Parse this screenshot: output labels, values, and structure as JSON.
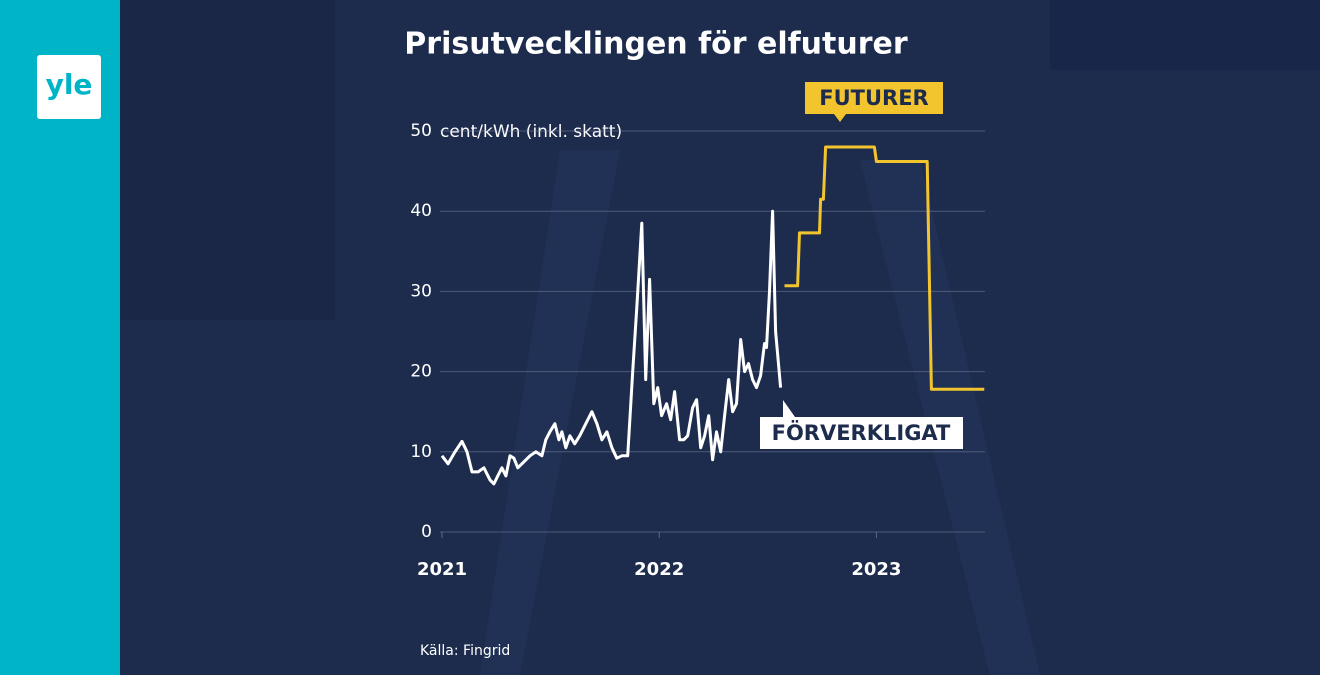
{
  "logo": "yle",
  "chart_data": {
    "type": "line",
    "title": "Prisutvecklingen för elfuturer",
    "y_label": "cent/kWh (inkl. skatt)",
    "source": "Källa: Fingrid",
    "xlim": [
      2021,
      2023.5
    ],
    "xticks": [
      2021,
      2022,
      2023
    ],
    "ylim": [
      0,
      50
    ],
    "yticks": [
      0,
      10,
      20,
      30,
      40,
      50
    ],
    "grid": true,
    "series": [
      {
        "name": "FÖRVERKLIGAT",
        "color": "#ffffff",
        "x": [
          2021.0,
          2021.028,
          2021.06,
          2021.092,
          2021.115,
          2021.138,
          2021.166,
          2021.193,
          2021.221,
          2021.239,
          2021.257,
          2021.276,
          2021.294,
          2021.313,
          2021.331,
          2021.349,
          2021.368,
          2021.405,
          2021.432,
          2021.46,
          2021.478,
          2021.497,
          2021.52,
          2021.538,
          2021.552,
          2021.57,
          2021.589,
          2021.611,
          2021.634,
          2021.662,
          2021.69,
          2021.713,
          2021.736,
          2021.759,
          2021.782,
          2021.805,
          2021.828,
          2021.855,
          2021.878,
          2021.897,
          2021.92,
          2021.938,
          2021.956,
          2021.975,
          2021.993,
          2022.011,
          2022.034,
          2022.053,
          2022.071,
          2022.094,
          2022.113,
          2022.131,
          2022.154,
          2022.172,
          2022.191,
          2022.209,
          2022.228,
          2022.246,
          2022.264,
          2022.283,
          2022.301,
          2022.32,
          2022.338,
          2022.356,
          2022.375,
          2022.393,
          2022.411,
          2022.43,
          2022.448,
          2022.467,
          2022.485,
          2022.494,
          2022.508,
          2022.522,
          2022.536,
          2022.559
        ],
        "values": [
          9.5,
          8.5,
          10,
          11.3,
          10,
          7.5,
          7.5,
          8,
          6.5,
          6,
          7,
          8,
          7,
          9.5,
          9.2,
          8,
          8.5,
          9.5,
          10,
          9.5,
          11.5,
          12.5,
          13.5,
          11.5,
          12.5,
          10.5,
          12,
          11,
          12,
          13.5,
          15,
          13.5,
          11.5,
          12.5,
          10.5,
          9.2,
          9.5,
          9.5,
          20,
          28,
          38.5,
          19,
          31.5,
          16,
          18,
          14.5,
          16,
          14,
          17.5,
          11.5,
          11.5,
          12,
          15.5,
          16.5,
          10.5,
          12,
          14.5,
          9,
          12.5,
          10,
          14.5,
          19,
          15,
          16,
          24,
          20,
          21,
          19,
          18,
          19.5,
          23.5,
          23,
          30,
          40,
          25,
          18
        ]
      },
      {
        "name": "FUTURER",
        "color": "#f2c52e",
        "x": [
          2022.577,
          2022.637,
          2022.646,
          2022.738,
          2022.743,
          2022.756,
          2022.766,
          2022.991,
          2023.0,
          2023.234,
          2023.253,
          2023.497
        ],
        "values": [
          30.7,
          30.7,
          37.3,
          37.3,
          41.5,
          41.5,
          48,
          48,
          46.2,
          46.2,
          17.8,
          17.8
        ]
      }
    ]
  }
}
